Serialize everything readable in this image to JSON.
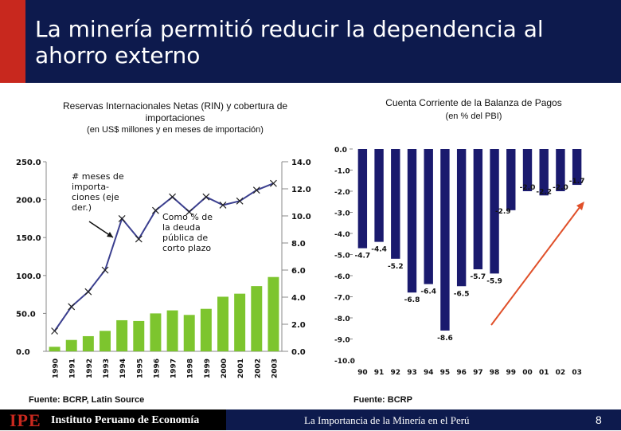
{
  "header": {
    "title": "La minería permitió reducir la dependencia al ahorro externo",
    "bg_color": "#0d1a4d",
    "accent_color": "#c8281e"
  },
  "chart_data": [
    {
      "type": "bar",
      "title": "Reservas Internacionales Netas (RIN) y cobertura de importaciones",
      "subtitle": "(en US$ millones y en meses de importación)",
      "categories": [
        "1990",
        "1991",
        "1992",
        "1993",
        "1994",
        "1995",
        "1996",
        "1997",
        "1998",
        "1999",
        "2000",
        "2001",
        "2002",
        "2003"
      ],
      "series": [
        {
          "name": "RIN",
          "axis": "left",
          "type": "bar",
          "color": "#7dc52e",
          "values": [
            6,
            15,
            20,
            27,
            41,
            40,
            50,
            54,
            48,
            56,
            72,
            76,
            86,
            98
          ]
        },
        {
          "name": "# meses de importaciones",
          "axis": "right",
          "type": "line",
          "color": "#3b3f8f",
          "values": [
            1.5,
            3.3,
            4.4,
            6.0,
            9.8,
            8.3,
            10.4,
            11.4,
            10.3,
            11.4,
            10.8,
            11.1,
            11.9,
            12.4
          ]
        }
      ],
      "y_left": {
        "ticks": [
          "250.0",
          "200.0",
          "150.0",
          "100.0",
          "50.0",
          "0.0"
        ],
        "range": [
          0,
          250
        ]
      },
      "y_right": {
        "ticks": [
          "14.0",
          "12.0",
          "10.0",
          "8.0",
          "6.0",
          "4.0",
          "2.0",
          "0.0"
        ],
        "range": [
          0,
          14
        ]
      },
      "annotations": [
        "# meses de importa- ciones (eje der.)",
        "Como % de la deuda pública de corto plazo"
      ],
      "source": "Fuente: BCRP, Latin Source"
    },
    {
      "type": "bar",
      "title": "Cuenta Corriente de la Balanza de Pagos",
      "subtitle": "(en % del PBI)",
      "categories": [
        "90",
        "91",
        "92",
        "93",
        "94",
        "95",
        "96",
        "97",
        "98",
        "99",
        "00",
        "01",
        "02",
        "03"
      ],
      "values": [
        -4.7,
        -4.4,
        -5.2,
        -6.8,
        -6.4,
        -8.6,
        -6.5,
        -5.7,
        -5.9,
        -2.9,
        -2.0,
        -2.2,
        -2.0,
        -1.7
      ],
      "label_order": [
        "-4.7",
        "-4.4",
        "-5.2",
        "-6.8",
        "-6.4",
        "-8.6",
        "-6.5",
        "-5.7",
        "-5.9",
        "-2.9",
        "-2.0",
        "-2.2",
        "-2.0",
        "-1.7"
      ],
      "color": "#1a1a6e",
      "y_ticks": [
        "0.0",
        "-1.0",
        "-2.0",
        "-3.0",
        "-4.0",
        "-5.0",
        "-6.0",
        "-7.0",
        "-8.0",
        "-9.0",
        "-10.0"
      ],
      "ylim": [
        -10,
        0
      ],
      "trend_arrow_color": "#e0502a",
      "source": "Fuente: BCRP"
    }
  ],
  "footer": {
    "brand": "IPE",
    "org_name": "Instituto Peruano de Economía",
    "text": "La Importancia de la Minería en el Perú",
    "page": "8"
  }
}
